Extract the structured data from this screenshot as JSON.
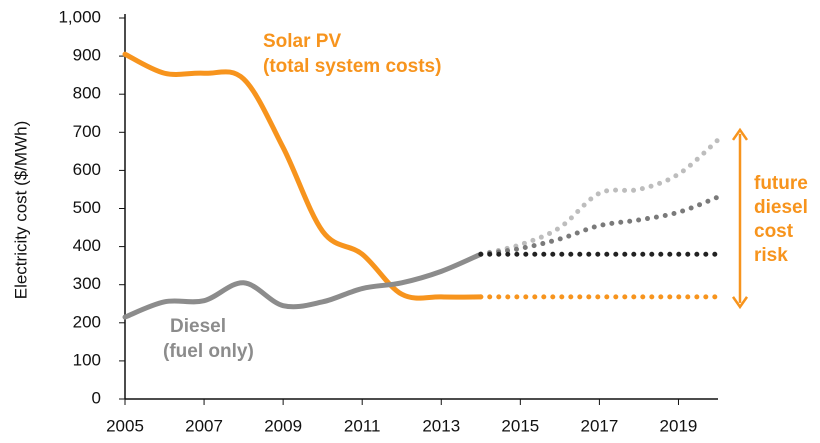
{
  "chart_data": {
    "type": "line",
    "y_label": "Electricity cost ($/MWh)",
    "x": [
      2005,
      2006,
      2007,
      2008,
      2009,
      2010,
      2011,
      2012,
      2013,
      2014,
      2015,
      2016,
      2017,
      2018,
      2019,
      2020
    ],
    "series": [
      {
        "name": "Solar PV",
        "note": "(total system costs)",
        "color": "#f7941d",
        "style": "solid",
        "values": [
          905,
          855,
          855,
          840,
          660,
          440,
          380,
          275,
          268,
          268,
          null,
          null,
          null,
          null,
          null,
          null
        ]
      },
      {
        "name": "Diesel",
        "note": "(fuel only)",
        "color": "#8c8c8c",
        "style": "solid",
        "values": [
          215,
          255,
          258,
          305,
          245,
          255,
          290,
          305,
          335,
          380,
          null,
          null,
          null,
          null,
          null,
          null
        ]
      },
      {
        "color": "#bdbdbd",
        "style": "dotted",
        "values": [
          null,
          null,
          null,
          null,
          null,
          null,
          null,
          null,
          null,
          380,
          405,
          450,
          540,
          550,
          590,
          680
        ]
      },
      {
        "color": "#7a7a7a",
        "style": "dotted",
        "values": [
          null,
          null,
          null,
          null,
          null,
          null,
          null,
          null,
          null,
          380,
          395,
          420,
          455,
          470,
          490,
          530
        ]
      },
      {
        "color": "#222222",
        "style": "dotted",
        "values": [
          null,
          null,
          null,
          null,
          null,
          null,
          null,
          null,
          null,
          380,
          380,
          380,
          380,
          380,
          380,
          380
        ]
      },
      {
        "color": "#f7941d",
        "style": "dotted",
        "values": [
          null,
          null,
          null,
          null,
          null,
          null,
          null,
          null,
          null,
          268,
          268,
          268,
          268,
          268,
          268,
          268
        ]
      }
    ],
    "risk_label": [
      "future",
      "diesel",
      "cost",
      "risk"
    ],
    "risk_color": "#f7941d",
    "xlim": [
      2005,
      2020
    ],
    "xticks": [
      2005,
      2007,
      2009,
      2011,
      2013,
      2015,
      2017,
      2019
    ],
    "ylim": [
      0,
      1000
    ],
    "yticks": [
      0,
      100,
      200,
      300,
      400,
      500,
      600,
      700,
      800,
      900,
      {
        "value": 1000,
        "label": "1,000"
      }
    ],
    "grid": false
  }
}
